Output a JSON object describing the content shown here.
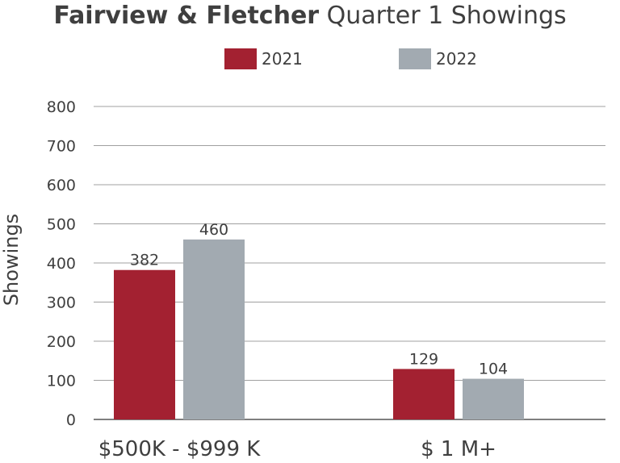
{
  "chart_data": {
    "type": "bar",
    "title_bold": "Fairview & Fletcher",
    "title_rest": "Quarter 1 Showings",
    "ylabel": "Showings",
    "xlabel": "",
    "categories": [
      "$500K - $999 K",
      "$ 1 M+"
    ],
    "series": [
      {
        "name": "2021",
        "color": "#a32131",
        "values": [
          382,
          129
        ]
      },
      {
        "name": "2022",
        "color": "#a2aab1",
        "values": [
          460,
          104
        ]
      }
    ],
    "ylim": [
      0,
      800
    ],
    "yticks": [
      0,
      100,
      200,
      300,
      400,
      500,
      600,
      700,
      800
    ],
    "grid": true,
    "legend_position": "top-center"
  }
}
